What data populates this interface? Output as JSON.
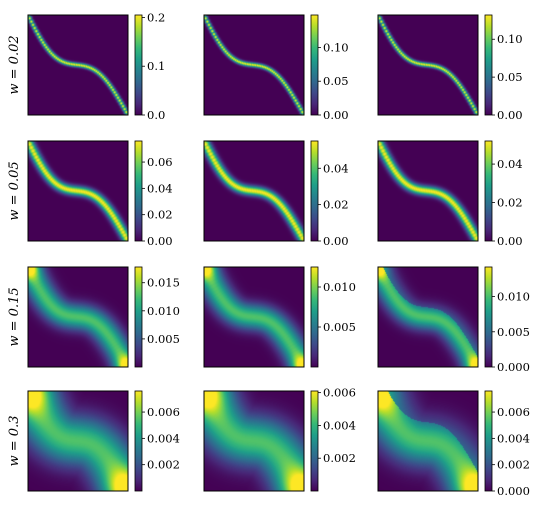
{
  "chart_data": {
    "type": "heatmap",
    "rows": [
      {
        "label": "w = 0.02",
        "width_param": 0.02,
        "panels": [
          {
            "colorbar_ticks": [
              "0.0",
              "0.1",
              "0.2"
            ],
            "tick_values": [
              0.0,
              0.1,
              0.2
            ],
            "vmin": 0.0,
            "vmax": 0.205
          },
          {
            "colorbar_ticks": [
              "0.00",
              "0.05",
              "0.10"
            ],
            "tick_values": [
              0.0,
              0.05,
              0.1
            ],
            "vmin": 0.0,
            "vmax": 0.148
          },
          {
            "colorbar_ticks": [
              "0.00",
              "0.05",
              "0.10"
            ],
            "tick_values": [
              0.0,
              0.05,
              0.1
            ],
            "vmin": 0.0,
            "vmax": 0.132
          }
        ]
      },
      {
        "label": "w = 0.05",
        "width_param": 0.05,
        "panels": [
          {
            "colorbar_ticks": [
              "0.00",
              "0.02",
              "0.04",
              "0.06"
            ],
            "tick_values": [
              0.0,
              0.02,
              0.04,
              0.06
            ],
            "vmin": 0.0,
            "vmax": 0.076
          },
          {
            "colorbar_ticks": [
              "0.00",
              "0.02",
              "0.04"
            ],
            "tick_values": [
              0.0,
              0.02,
              0.04
            ],
            "vmin": 0.0,
            "vmax": 0.055
          },
          {
            "colorbar_ticks": [
              "0.00",
              "0.02",
              "0.04"
            ],
            "tick_values": [
              0.0,
              0.02,
              0.04
            ],
            "vmin": 0.0,
            "vmax": 0.052
          }
        ]
      },
      {
        "label": "w = 0.15",
        "width_param": 0.15,
        "panels": [
          {
            "colorbar_ticks": [
              "0.005",
              "0.010",
              "0.015"
            ],
            "tick_values": [
              0.005,
              0.01,
              0.015
            ],
            "vmin": 0.0,
            "vmax": 0.0178
          },
          {
            "colorbar_ticks": [
              "0.005",
              "0.010"
            ],
            "tick_values": [
              0.005,
              0.01
            ],
            "vmin": 0.0,
            "vmax": 0.0125
          },
          {
            "colorbar_ticks": [
              "0.000",
              "0.005",
              "0.010"
            ],
            "tick_values": [
              0.0,
              0.005,
              0.01
            ],
            "vmin": 0.0,
            "vmax": 0.0142
          }
        ]
      },
      {
        "label": "w = 0.3",
        "width_param": 0.3,
        "panels": [
          {
            "colorbar_ticks": [
              "0.002",
              "0.004",
              "0.006"
            ],
            "tick_values": [
              0.002,
              0.004,
              0.006
            ],
            "vmin": 0.0,
            "vmax": 0.0076
          },
          {
            "colorbar_ticks": [
              "0.002",
              "0.004",
              "0.006"
            ],
            "tick_values": [
              0.002,
              0.004,
              0.006
            ],
            "vmin": 0.0,
            "vmax": 0.0061
          },
          {
            "colorbar_ticks": [
              "0.000",
              "0.002",
              "0.004",
              "0.006"
            ],
            "tick_values": [
              0.0,
              0.002,
              0.004,
              0.006
            ],
            "vmin": 0.0,
            "vmax": 0.0076
          }
        ]
      }
    ],
    "colormap": "viridis",
    "colormap_colors": [
      "#440154",
      "#482878",
      "#3e4989",
      "#31688e",
      "#26828e",
      "#1f9e89",
      "#35b779",
      "#6ece58",
      "#b5de2b",
      "#fde725"
    ]
  }
}
